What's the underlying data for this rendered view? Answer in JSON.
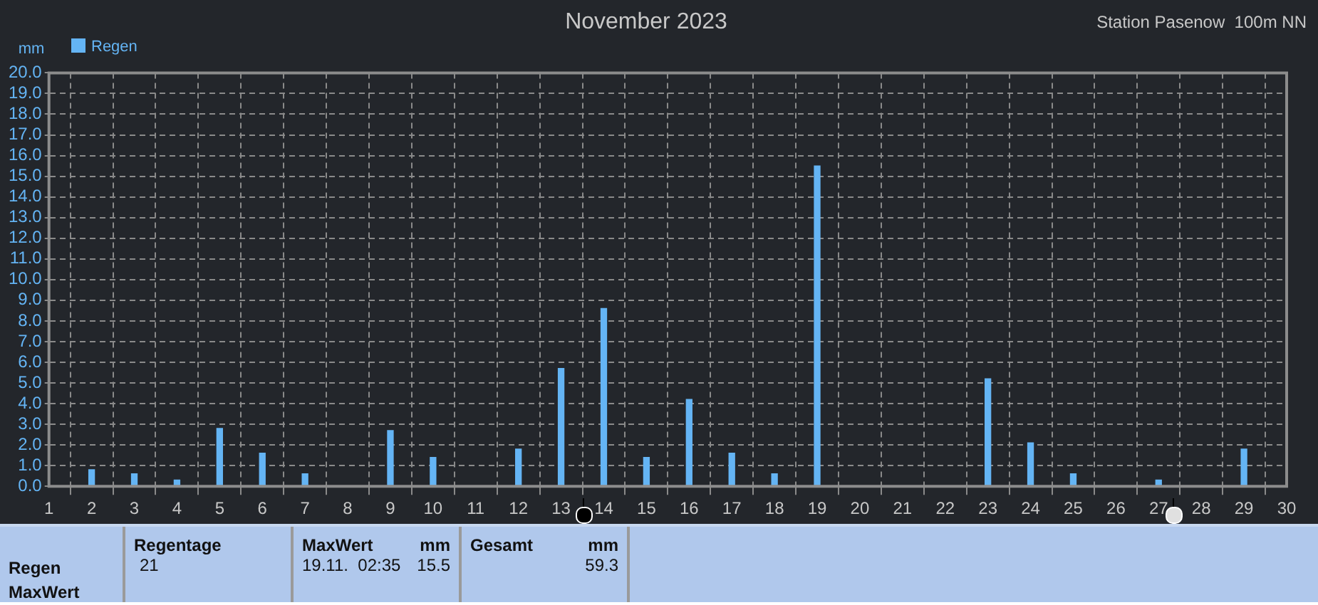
{
  "chart_data": {
    "type": "bar",
    "title": "November 2023",
    "subtitle": "Station Pasenow  100m NN",
    "ylabel": "mm",
    "x": [
      2,
      3,
      4,
      5,
      6,
      7,
      9,
      10,
      12,
      13,
      14,
      15,
      16,
      17,
      18,
      19,
      23,
      24,
      25,
      27,
      29
    ],
    "series": [
      {
        "name": "Regen",
        "color": "#64b4f4",
        "values": [
          0.8,
          0.6,
          0.3,
          2.8,
          1.6,
          0.6,
          2.7,
          1.4,
          1.8,
          5.7,
          8.6,
          1.4,
          4.2,
          1.6,
          0.6,
          15.5,
          5.2,
          2.1,
          0.6,
          0.3,
          1.8
        ]
      }
    ],
    "xlim": [
      1,
      30
    ],
    "xticks": [
      1,
      2,
      3,
      4,
      5,
      6,
      7,
      8,
      9,
      10,
      11,
      12,
      13,
      14,
      15,
      16,
      17,
      18,
      19,
      20,
      21,
      22,
      23,
      24,
      25,
      26,
      27,
      28,
      29,
      30
    ],
    "ylim": [
      0,
      20
    ],
    "yticks": [
      {
        "value": 0,
        "label": "0.0"
      },
      {
        "value": 1,
        "label": "1.0"
      },
      {
        "value": 2,
        "label": "2.0"
      },
      {
        "value": 3,
        "label": "3.0"
      },
      {
        "value": 4,
        "label": "4.0"
      },
      {
        "value": 5,
        "label": "5.0"
      },
      {
        "value": 6,
        "label": "6.0"
      },
      {
        "value": 7,
        "label": "7.0"
      },
      {
        "value": 8,
        "label": "8.0"
      },
      {
        "value": 9,
        "label": "9.0"
      },
      {
        "value": 10,
        "label": "10.0"
      },
      {
        "value": 11,
        "label": "11.0"
      },
      {
        "value": 12,
        "label": "12.0"
      },
      {
        "value": 13,
        "label": "13.0"
      },
      {
        "value": 14,
        "label": "14.0"
      },
      {
        "value": 15,
        "label": "15.0"
      },
      {
        "value": 16,
        "label": "16.0"
      },
      {
        "value": 17,
        "label": "17.0"
      },
      {
        "value": 18,
        "label": "18.0"
      },
      {
        "value": 19,
        "label": "19.0"
      },
      {
        "value": 20,
        "label": "20.0"
      }
    ],
    "grid": true,
    "legend": "top left",
    "annotations": [
      "Regen",
      "MaxWert",
      "Regentage",
      "21",
      "MaxWert",
      "mm",
      "19.11.  02:35",
      "15.5",
      "Gesamt",
      "mm",
      "59.3"
    ]
  }
}
